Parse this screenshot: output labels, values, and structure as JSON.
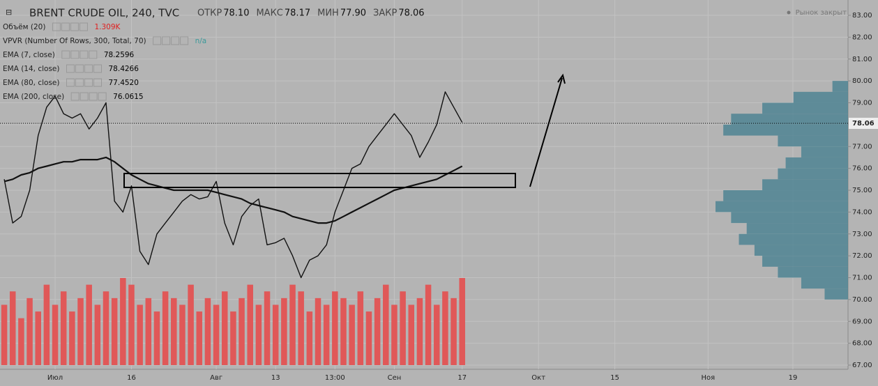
{
  "chart_data": {
    "type": "line",
    "title": "BRENT CRUDE OIL, 240, TVC",
    "ohlc": [
      {
        "label": "ОТКР",
        "value": "78.10"
      },
      {
        "label": "МАКС",
        "value": "78.17"
      },
      {
        "label": "МИН",
        "value": "77.90"
      },
      {
        "label": "ЗАКР",
        "value": "78.06"
      }
    ],
    "indicators": [
      {
        "name": "Объём (20)",
        "value": "1.309K",
        "color": "#e02020"
      },
      {
        "name": "VPVR (Number Of Rows, 300, Total, 70)",
        "value": "n/a",
        "color": "#3a9a9a"
      },
      {
        "name": "EMA (7, close)",
        "value": "78.2596",
        "color": "#000000"
      },
      {
        "name": "EMA (14, close)",
        "value": "78.4266",
        "color": "#000000"
      },
      {
        "name": "EMA (80, close)",
        "value": "77.4520",
        "color": "#000000"
      },
      {
        "name": "EMA (200, close)",
        "value": "76.0615",
        "color": "#000000"
      }
    ],
    "market_status": "Рынок закрыт",
    "categories": [
      null,
      null,
      null,
      null,
      null,
      null,
      "Июл",
      null,
      null,
      null,
      null,
      null,
      null,
      null,
      null,
      "16",
      null,
      null,
      null,
      null,
      null,
      null,
      null,
      null,
      null,
      "Авг",
      null,
      null,
      null,
      null,
      null,
      null,
      "13",
      null,
      null,
      null,
      null,
      null,
      null,
      "13:00",
      null,
      null,
      null,
      null,
      null,
      null,
      "Сен",
      null,
      null,
      null,
      null,
      null,
      null,
      null,
      "17",
      null,
      null,
      null,
      null,
      null,
      null,
      null,
      null,
      "Окт",
      null,
      null,
      null,
      null,
      null,
      null,
      null,
      null,
      "15",
      null,
      null,
      null,
      null,
      null,
      null,
      null,
      null,
      null,
      null,
      "Ноя",
      null,
      null,
      null,
      null,
      null,
      null,
      null,
      null,
      null,
      "19",
      null,
      null,
      null,
      null,
      null,
      null
    ],
    "series": [
      {
        "color": "#111111",
        "width": 1.4,
        "values": [
          75.5,
          73.5,
          73.8,
          75.0,
          77.5,
          78.8,
          79.3,
          78.5,
          78.3,
          78.5,
          77.8,
          78.3,
          79.0,
          74.5,
          74.0,
          75.2,
          72.2,
          71.6,
          73.0,
          73.5,
          74.0,
          74.5,
          74.8,
          74.6,
          74.7,
          75.4,
          73.5,
          72.5,
          73.8,
          74.3,
          74.6,
          72.5,
          72.6,
          72.8,
          72.0,
          71.0,
          71.8,
          72.0,
          72.5,
          74.0,
          75.0,
          76.0,
          76.2,
          77.0,
          77.5,
          78.0,
          78.5,
          78.0,
          77.5,
          76.5,
          77.2,
          78.0,
          79.5,
          78.8,
          78.1,
          null,
          null,
          null,
          null,
          null,
          null,
          null,
          null,
          null,
          null,
          null,
          null,
          null,
          null,
          null,
          null,
          null,
          null,
          null,
          null,
          null,
          null,
          null,
          null,
          null,
          null,
          null,
          null,
          null,
          null,
          null,
          null,
          null,
          null,
          null,
          null,
          null,
          null,
          null,
          null,
          null,
          null,
          null,
          null,
          null
        ]
      },
      {
        "color": "#111111",
        "width": 2.2,
        "values": [
          75.4,
          75.5,
          75.7,
          75.8,
          76.0,
          76.1,
          76.2,
          76.3,
          76.3,
          76.4,
          76.4,
          76.4,
          76.5,
          76.3,
          76.0,
          75.7,
          75.5,
          75.3,
          75.2,
          75.1,
          75.0,
          75.0,
          75.0,
          75.0,
          75.0,
          74.9,
          74.8,
          74.7,
          74.6,
          74.4,
          74.3,
          74.2,
          74.1,
          74.0,
          73.8,
          73.7,
          73.6,
          73.5,
          73.5,
          73.6,
          73.8,
          74.0,
          74.2,
          74.4,
          74.6,
          74.8,
          75.0,
          75.1,
          75.2,
          75.3,
          75.4,
          75.5,
          75.7,
          75.9,
          76.1,
          null,
          null,
          null,
          null,
          null,
          null,
          null,
          null,
          null,
          null,
          null,
          null,
          null,
          null,
          null,
          null,
          null,
          null,
          null,
          null,
          null,
          null,
          null,
          null,
          null,
          null,
          null,
          null,
          null,
          null,
          null,
          null,
          null,
          null,
          null,
          null,
          null,
          null,
          null,
          null,
          null,
          null,
          null,
          null,
          null
        ]
      }
    ],
    "volume": {
      "color": "#e05858",
      "values": [
        0.9,
        1.1,
        0.7,
        1.0,
        0.8,
        1.2,
        0.9,
        1.1,
        0.8,
        1.0,
        1.2,
        0.9,
        1.1,
        1.0,
        1.3,
        1.2,
        0.9,
        1.0,
        0.8,
        1.1,
        1.0,
        0.9,
        1.2,
        0.8,
        1.0,
        0.9,
        1.1,
        0.8,
        1.0,
        1.2,
        0.9,
        1.1,
        0.9,
        1.0,
        1.2,
        1.1,
        0.8,
        1.0,
        0.9,
        1.1,
        1.0,
        0.9,
        1.1,
        0.8,
        1.0,
        1.2,
        0.9,
        1.1,
        0.9,
        1.0,
        1.2,
        0.9,
        1.1,
        1.0,
        1.3,
        null,
        null,
        null,
        null,
        null,
        null,
        null,
        null,
        null,
        null,
        null,
        null,
        null,
        null,
        null,
        null,
        null,
        null,
        null,
        null,
        null,
        null,
        null,
        null,
        null,
        null,
        null,
        null,
        null,
        null,
        null,
        null,
        null,
        null,
        null,
        null,
        null,
        null,
        null,
        null,
        null,
        null,
        null,
        null,
        null
      ]
    },
    "profile": {
      "color": "#4f8493",
      "bins": [
        70,
        70.5,
        71,
        71.5,
        72,
        72.5,
        73,
        73.5,
        74,
        74.5,
        75,
        75.5,
        76,
        76.5,
        77,
        77.5,
        78,
        78.5,
        79,
        79.5,
        80
      ],
      "values": [
        30,
        60,
        90,
        110,
        120,
        140,
        130,
        150,
        170,
        160,
        110,
        90,
        80,
        60,
        90,
        160,
        150,
        110,
        70,
        20
      ]
    },
    "last_price": 78.06,
    "ylim": [
      67,
      83
    ],
    "yticks": [
      {
        "value": 67,
        "label": "67.00"
      },
      {
        "value": 68,
        "label": "68.00"
      },
      {
        "value": 69,
        "label": "69.00"
      },
      {
        "value": 70,
        "label": "70.00"
      },
      {
        "value": 71,
        "label": "71.00"
      },
      {
        "value": 72,
        "label": "72.00"
      },
      {
        "value": 73,
        "label": "73.00"
      },
      {
        "value": 74,
        "label": "74.00"
      },
      {
        "value": 75,
        "label": "75.00"
      },
      {
        "value": 76,
        "label": "76.00"
      },
      {
        "value": 77,
        "label": "77.00"
      },
      {
        "value": 78,
        "label": "78.00"
      },
      {
        "value": 79,
        "label": "79.00"
      },
      {
        "value": 80,
        "label": "80.00"
      },
      {
        "value": 81,
        "label": "81.00"
      },
      {
        "value": 82,
        "label": "82.00"
      },
      {
        "value": 83,
        "label": "83.00"
      }
    ],
    "grid": true
  }
}
